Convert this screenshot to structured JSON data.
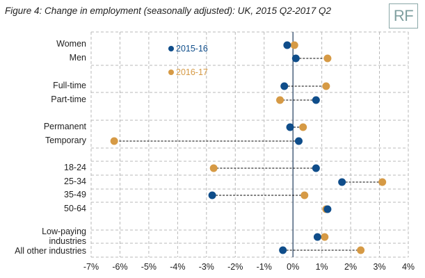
{
  "title": "Figure 4: Change in employment (seasonally adjusted): UK, 2015 Q2-2017 Q2",
  "logo": "RF",
  "colors": {
    "series1": "#0f4d8a",
    "series2": "#d69a45",
    "grid": "#b8b8b8",
    "zero": "#1e3a5c"
  },
  "chart_data": {
    "type": "dot",
    "x_axis": {
      "min": -7,
      "max": 4,
      "ticks": [
        -7,
        -6,
        -5,
        -4,
        -3,
        -2,
        -1,
        0,
        1,
        2,
        3,
        4
      ],
      "tick_labels": [
        "-7%",
        "-6%",
        "-5%",
        "-4%",
        "-3%",
        "-2%",
        "-1%",
        "0%",
        "1%",
        "2%",
        "3%",
        "4%"
      ]
    },
    "categories": [
      "Women",
      "Men",
      "Full-time",
      "Part-time",
      "Permanent",
      "Temporary",
      "18-24",
      "25-34",
      "35-49",
      "50-64",
      "Low-paying industries",
      "All other industries"
    ],
    "series": [
      {
        "name": "2015-16",
        "values": [
          -0.2,
          0.1,
          -0.3,
          0.8,
          -0.1,
          0.2,
          0.8,
          1.7,
          -2.8,
          1.2,
          0.85,
          -0.35
        ]
      },
      {
        "name": "2016-17",
        "values": [
          0.05,
          1.2,
          1.15,
          -0.45,
          0.35,
          -6.2,
          -2.75,
          3.1,
          0.4,
          1.15,
          1.1,
          2.35
        ]
      }
    ],
    "legend": [
      "2015-16",
      "2016-17"
    ]
  }
}
